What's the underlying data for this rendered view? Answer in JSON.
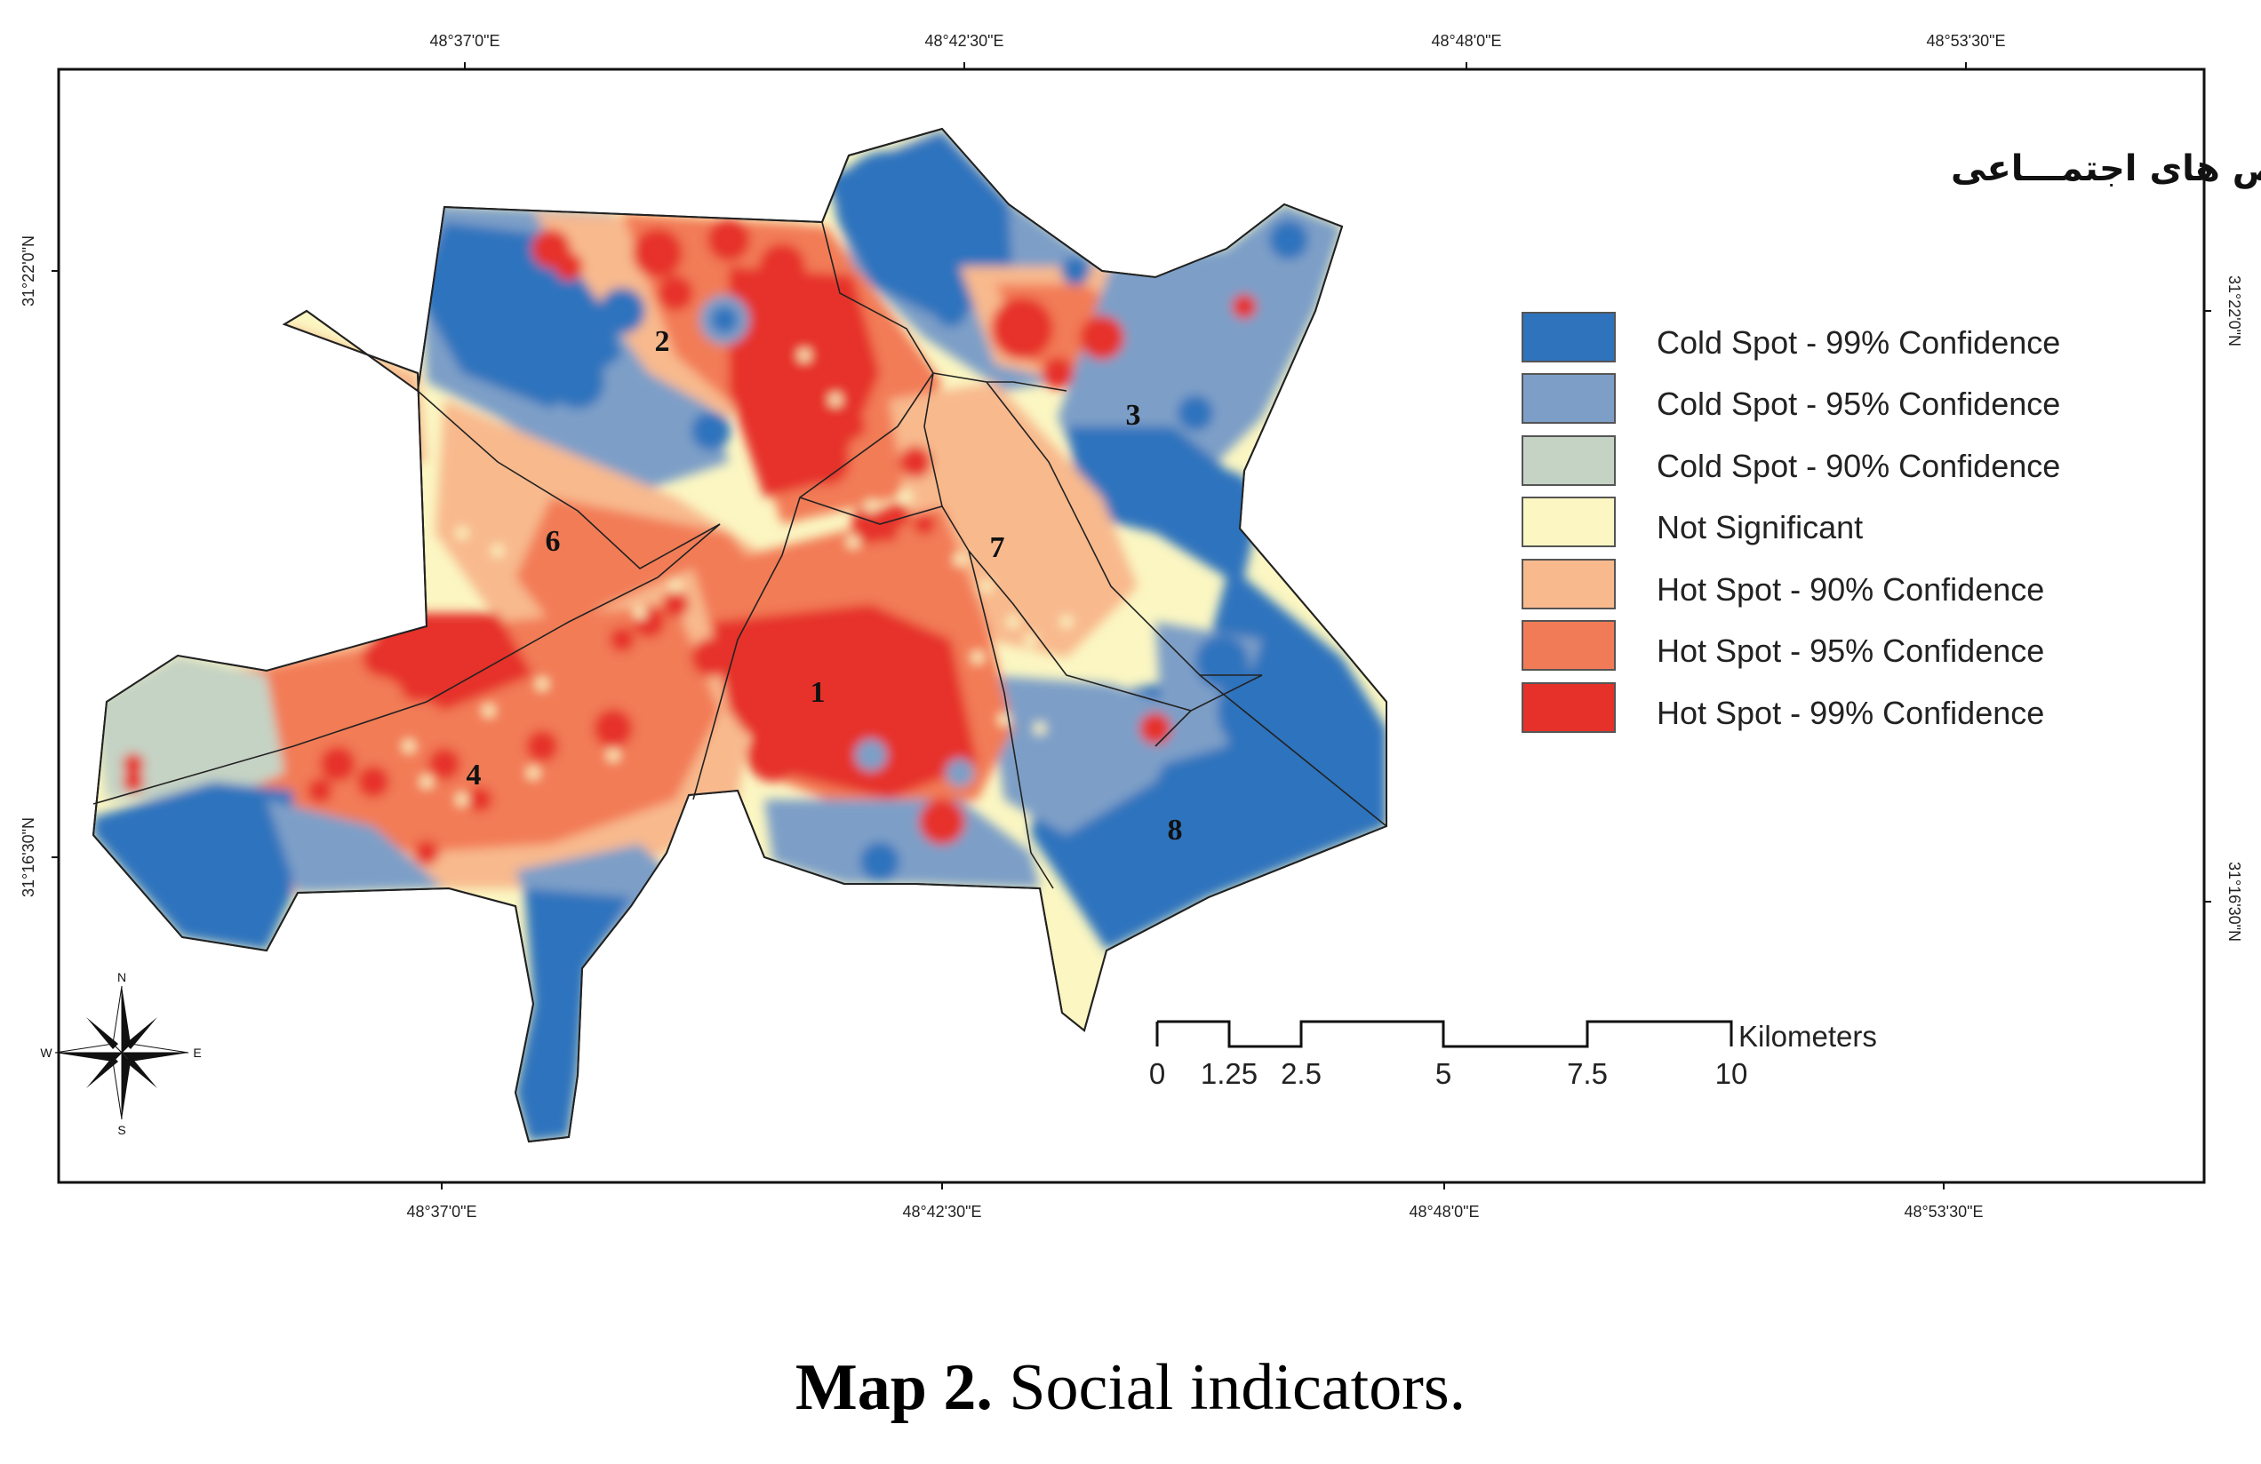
{
  "map": {
    "title": "نقشه شاخص های اجتمـــاعی",
    "top_ticks": [
      "48°37'0\"E",
      "48°42'30\"E",
      "48°48'0\"E",
      "48°53'30\"E"
    ],
    "bottom_ticks": [
      "48°37'0\"E",
      "48°42'30\"E",
      "48°48'0\"E",
      "48°53'30\"E"
    ],
    "left_ticks": [
      "31°22'0\"N",
      "31°16'30\"N"
    ],
    "right_ticks": [
      "31°22'0\"N",
      "31°16'30\"N"
    ],
    "districts": [
      "1",
      "2",
      "3",
      "4",
      "6",
      "7",
      "8"
    ]
  },
  "legend": {
    "items": [
      {
        "label": "Cold Spot - 99% Confidence",
        "color": "#2f73bd"
      },
      {
        "label": "Cold Spot - 95% Confidence",
        "color": "#7d9fc7"
      },
      {
        "label": "Cold Spot - 90% Confidence",
        "color": "#c5d3c4"
      },
      {
        "label": "Not Significant",
        "color": "#fbf6c2"
      },
      {
        "label": "Hot Spot - 90% Confidence",
        "color": "#f8b98d"
      },
      {
        "label": "Hot Spot - 95% Confidence",
        "color": "#f27b57"
      },
      {
        "label": "Hot Spot - 99% Confidence",
        "color": "#e6312b"
      }
    ]
  },
  "scale_bar": {
    "unit": "Kilometers",
    "labels": [
      "0",
      "1.25",
      "2.5",
      "5",
      "7.5",
      "10"
    ]
  },
  "compass": {
    "n": "N",
    "s": "S",
    "e": "E",
    "w": "W"
  },
  "caption": {
    "label": "Map 2.",
    "text": " Social indicators."
  }
}
